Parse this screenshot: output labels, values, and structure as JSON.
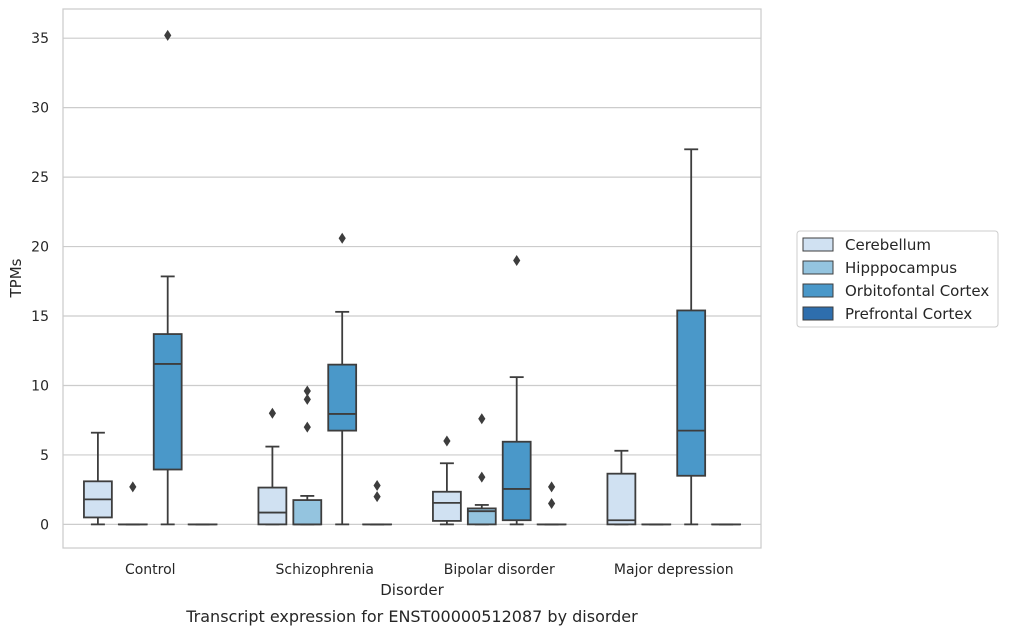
{
  "chart_data": {
    "type": "box",
    "caption": "Transcript expression for ENST00000512087 by disorder",
    "xlabel": "Disorder",
    "ylabel": "TPMs",
    "ylim": [
      -1.7,
      37.1
    ],
    "yticks": [
      0,
      5,
      10,
      15,
      20,
      25,
      30,
      35
    ],
    "grid": "horizontal",
    "legend_placement": "center-right",
    "categories": [
      "Control",
      "Schizophrenia",
      "Bipolar disorder",
      "Major depression"
    ],
    "series": [
      {
        "name": "Cerebellum",
        "color": "#d0e1f2",
        "boxes": [
          {
            "whislo": 0.0,
            "q1": 0.5,
            "med": 1.8,
            "q3": 3.1,
            "whishi": 6.6,
            "fliers": []
          },
          {
            "whislo": 0.0,
            "q1": 0.0,
            "med": 0.85,
            "q3": 2.65,
            "whishi": 5.6,
            "fliers": [
              8.0
            ]
          },
          {
            "whislo": 0.0,
            "q1": 0.25,
            "med": 1.55,
            "q3": 2.35,
            "whishi": 4.4,
            "fliers": [
              6.0
            ]
          },
          {
            "whislo": 0.0,
            "q1": 0.0,
            "med": 0.3,
            "q3": 3.65,
            "whishi": 5.3,
            "fliers": []
          }
        ]
      },
      {
        "name": "Hipppocampus",
        "color": "#94c4df",
        "boxes": [
          {
            "whislo": 0.0,
            "q1": 0.0,
            "med": 0.0,
            "q3": 0.0,
            "whishi": 0.0,
            "fliers": [
              2.7
            ]
          },
          {
            "whislo": 0.0,
            "q1": 0.0,
            "med": 0.0,
            "q3": 1.75,
            "whishi": 2.05,
            "fliers": [
              7.0,
              9.0,
              9.6
            ]
          },
          {
            "whislo": 0.0,
            "q1": 0.0,
            "med": 0.95,
            "q3": 1.15,
            "whishi": 1.4,
            "fliers": [
              3.4,
              7.6
            ]
          },
          {
            "whislo": 0.0,
            "q1": 0.0,
            "med": 0.0,
            "q3": 0.0,
            "whishi": 0.0,
            "fliers": []
          }
        ]
      },
      {
        "name": "Orbitofontal Cortex",
        "color": "#4a98c9",
        "boxes": [
          {
            "whislo": 0.0,
            "q1": 3.95,
            "med": 11.55,
            "q3": 13.7,
            "whishi": 17.85,
            "fliers": [
              35.2
            ]
          },
          {
            "whislo": 0.0,
            "q1": 6.75,
            "med": 7.95,
            "q3": 11.5,
            "whishi": 15.3,
            "fliers": [
              20.6
            ]
          },
          {
            "whislo": 0.0,
            "q1": 0.3,
            "med": 2.55,
            "q3": 5.95,
            "whishi": 10.6,
            "fliers": [
              19.0
            ]
          },
          {
            "whislo": 0.0,
            "q1": 3.5,
            "med": 6.75,
            "q3": 15.4,
            "whishi": 27.0,
            "fliers": []
          }
        ]
      },
      {
        "name": "Prefrontal Cortex",
        "color": "#2e6ead",
        "boxes": [
          {
            "whislo": 0.0,
            "q1": 0.0,
            "med": 0.0,
            "q3": 0.0,
            "whishi": 0.0,
            "fliers": []
          },
          {
            "whislo": 0.0,
            "q1": 0.0,
            "med": 0.0,
            "q3": 0.0,
            "whishi": 0.0,
            "fliers": [
              2.0,
              2.8
            ]
          },
          {
            "whislo": 0.0,
            "q1": 0.0,
            "med": 0.0,
            "q3": 0.0,
            "whishi": 0.0,
            "fliers": [
              1.5,
              2.7
            ]
          },
          {
            "whislo": 0.0,
            "q1": 0.0,
            "med": 0.0,
            "q3": 0.0,
            "whishi": 0.0,
            "fliers": []
          }
        ]
      }
    ]
  }
}
